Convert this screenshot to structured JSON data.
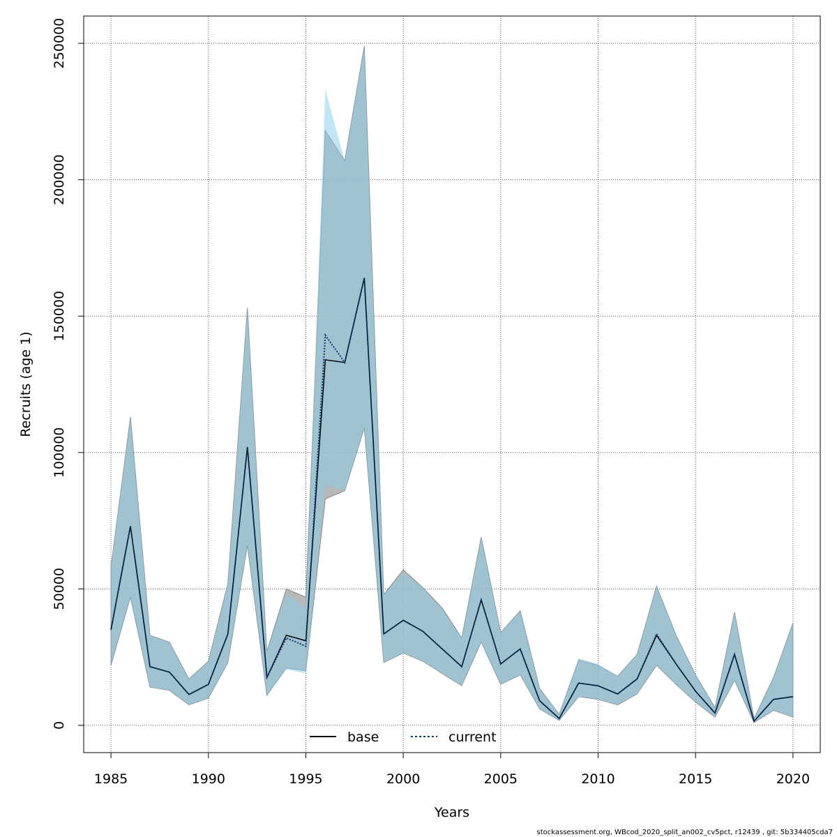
{
  "chart_data": {
    "type": "line",
    "xlabel": "Years",
    "ylabel": "Recruits (age 1)",
    "xlim": [
      1983.6,
      2021.4
    ],
    "ylim": [
      -10000,
      260000
    ],
    "x_ticks": [
      1985,
      1990,
      1995,
      2000,
      2005,
      2010,
      2015,
      2020
    ],
    "y_ticks": [
      0,
      50000,
      100000,
      150000,
      200000,
      250000
    ],
    "grid": true,
    "legend_position": "bottom-center",
    "colors": {
      "base_line": "#000000",
      "base_band": "#a0a0a0",
      "current_line": "#0b3a6b",
      "current_band": "#87ceeb",
      "overlap_band": "#a3c4d6"
    },
    "x": [
      1985,
      1986,
      1987,
      1988,
      1989,
      1990,
      1991,
      1992,
      1993,
      1994,
      1995,
      1996,
      1997,
      1998,
      1999,
      2000,
      2001,
      2002,
      2003,
      2004,
      2005,
      2006,
      2007,
      2008,
      2009,
      2010,
      2011,
      2012,
      2013,
      2014,
      2015,
      2016,
      2017,
      2018,
      2019,
      2020
    ],
    "series": [
      {
        "name": "base",
        "values": [
          35000,
          73000,
          21500,
          19500,
          11300,
          15000,
          33500,
          102000,
          17500,
          33000,
          31000,
          134000,
          133000,
          164000,
          33500,
          38500,
          34500,
          28000,
          21500,
          46000,
          22500,
          28000,
          9000,
          2500,
          15500,
          14500,
          11500,
          17000,
          33000,
          22500,
          12500,
          4500,
          26000,
          1500,
          9500,
          10500
        ],
        "lower": [
          22000,
          47000,
          14000,
          12800,
          7500,
          10000,
          23000,
          66000,
          11000,
          21000,
          20000,
          83000,
          86000,
          109000,
          23000,
          26500,
          23500,
          19000,
          14500,
          30500,
          15000,
          18500,
          6000,
          1800,
          10500,
          9500,
          7500,
          11500,
          22000,
          15000,
          8500,
          3000,
          16500,
          1000,
          5500,
          3000
        ],
        "upper": [
          58000,
          113000,
          33000,
          30500,
          17000,
          23500,
          52000,
          153000,
          27000,
          50000,
          47000,
          218000,
          207000,
          249000,
          48000,
          57000,
          50500,
          43000,
          32000,
          69000,
          34000,
          42000,
          13500,
          4000,
          24000,
          22000,
          18000,
          26000,
          51000,
          33000,
          18500,
          6500,
          41500,
          2500,
          17500,
          37500
        ]
      },
      {
        "name": "current",
        "values": [
          35000,
          73000,
          21500,
          19500,
          11300,
          15000,
          33500,
          102000,
          17500,
          32000,
          29000,
          143000,
          133000,
          164000,
          33500,
          38500,
          34500,
          28000,
          21500,
          46000,
          22500,
          28000,
          9000,
          2500,
          15500,
          14500,
          11500,
          17000,
          33500,
          22500,
          12500,
          4500,
          26000,
          1500,
          9500,
          10500
        ],
        "lower": [
          22000,
          47000,
          14000,
          12800,
          7500,
          10000,
          23000,
          66000,
          11000,
          20500,
          19000,
          88000,
          86000,
          109000,
          23000,
          26500,
          23500,
          19000,
          14500,
          30500,
          15000,
          18500,
          6000,
          1800,
          10500,
          9500,
          7500,
          11500,
          22000,
          15000,
          8500,
          3000,
          16500,
          1000,
          5500,
          3000
        ],
        "upper": [
          58000,
          113000,
          33000,
          30500,
          17000,
          23500,
          52000,
          153000,
          27000,
          48500,
          43000,
          233000,
          207000,
          249000,
          48000,
          56000,
          50500,
          42500,
          32000,
          69000,
          34000,
          42000,
          13500,
          4000,
          24500,
          22500,
          18000,
          26000,
          51000,
          33000,
          18500,
          6500,
          41500,
          2500,
          17500,
          37500
        ]
      }
    ]
  },
  "footer": "stockassessment.org, WBcod_2020_split_an002_cv5pct, r12439 , git: 5b334405cda7"
}
